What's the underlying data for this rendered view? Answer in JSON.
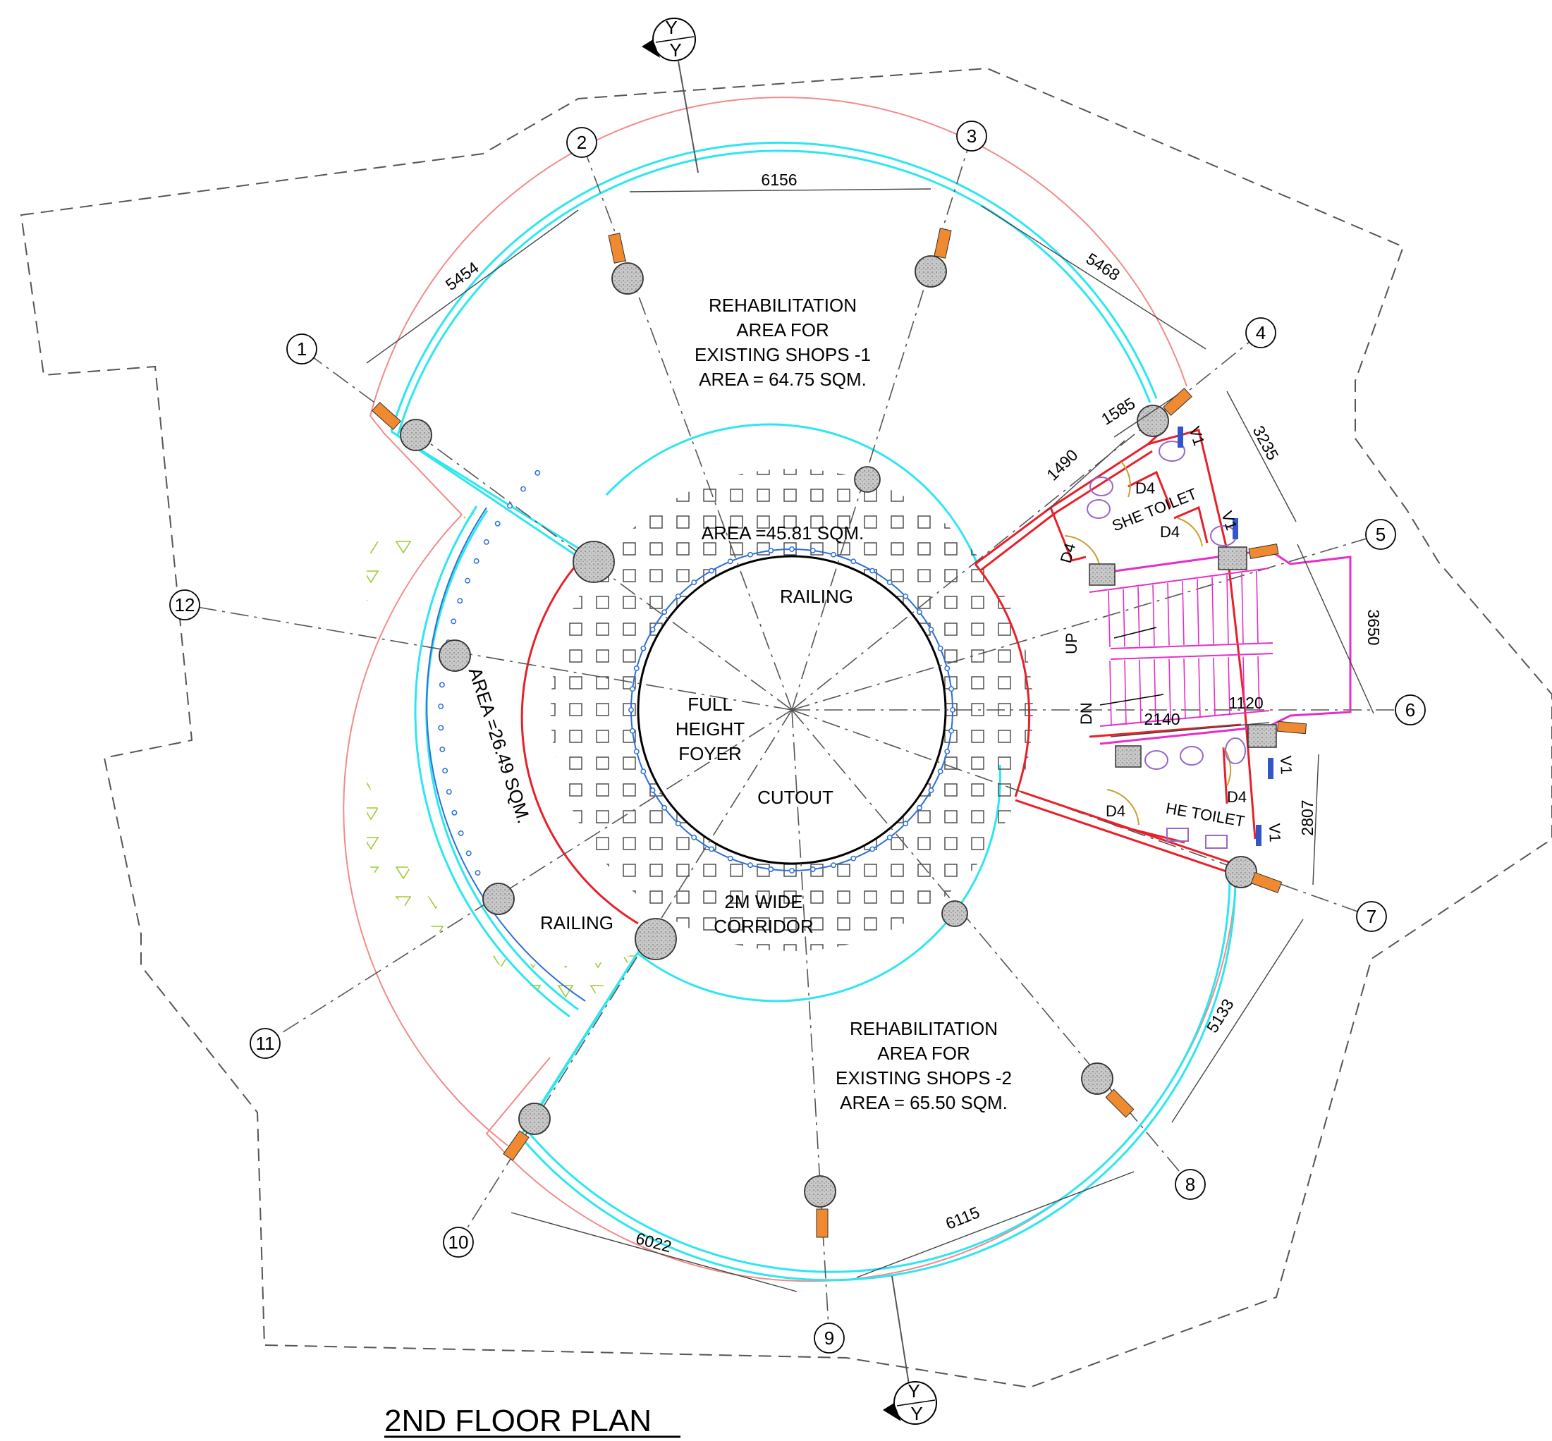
{
  "title": "2ND FLOOR PLAN",
  "rooms": {
    "shops1": [
      "REHABILITATION",
      "AREA FOR",
      "EXISTING SHOPS -1",
      "AREA = 64.75 SQM."
    ],
    "shops2": [
      "REHABILITATION",
      "AREA FOR",
      "EXISTING SHOPS -2",
      "AREA = 65.50 SQM."
    ],
    "corridor_area": "AREA =45.81 SQM.",
    "corridor": [
      "2M WIDE",
      "CORRIDOR"
    ],
    "foyer": [
      "FULL",
      "HEIGHT",
      "FOYER"
    ],
    "cutout": "CUTOUT",
    "railing_inner": "RAILING",
    "railing_outer": "RAILING",
    "balcony_area": "AREA =26.49 SQM.",
    "she_toilet": "SHE TOILET",
    "he_toilet": "HE TOILET",
    "stair_up": "UP",
    "stair_dn": "DN"
  },
  "grid_labels": [
    "1",
    "2",
    "3",
    "4",
    "5",
    "6",
    "7",
    "8",
    "9",
    "10",
    "11",
    "12"
  ],
  "section_marker": {
    "top": "Y",
    "bottom": "Y"
  },
  "dimensions": {
    "d5454": "5454",
    "d6156": "6156",
    "d5468": "5468",
    "d3235": "3235",
    "d1490": "1490",
    "d1585": "1585",
    "d3650": "3650",
    "d2140": "2140",
    "d1120": "1120",
    "d2807": "2807",
    "d5133": "5133",
    "d6115": "6115",
    "d6022": "6022"
  },
  "tags": {
    "door": "D4",
    "vent": "V1"
  },
  "colors": {
    "wall_red": "#e8202a",
    "outer_pink": "#f28a8a",
    "glass_cyan": "#2ee6f0",
    "railing_blue": "#2b6fd6",
    "stair_magenta": "#e62ec8",
    "column_orange": "#f08a30",
    "hatch_green": "#9ccc30",
    "fixture_purple": "#9966cc",
    "door_gold": "#c8a030"
  }
}
